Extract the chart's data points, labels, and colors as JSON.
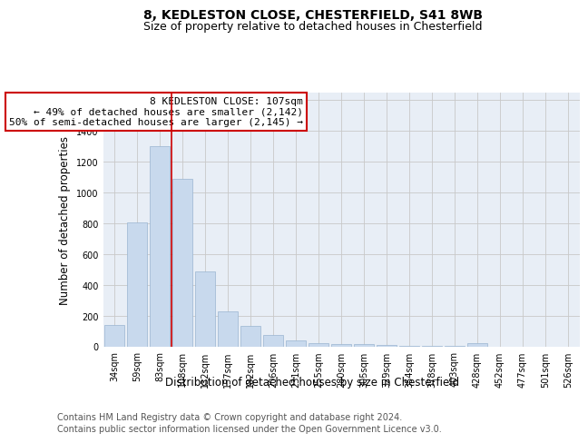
{
  "title1": "8, KEDLESTON CLOSE, CHESTERFIELD, S41 8WB",
  "title2": "Size of property relative to detached houses in Chesterfield",
  "xlabel": "Distribution of detached houses by size in Chesterfield",
  "ylabel": "Number of detached properties",
  "footnote1": "Contains HM Land Registry data © Crown copyright and database right 2024.",
  "footnote2": "Contains public sector information licensed under the Open Government Licence v3.0.",
  "categories": [
    "34sqm",
    "59sqm",
    "83sqm",
    "108sqm",
    "132sqm",
    "157sqm",
    "182sqm",
    "206sqm",
    "231sqm",
    "255sqm",
    "280sqm",
    "305sqm",
    "329sqm",
    "354sqm",
    "378sqm",
    "403sqm",
    "428sqm",
    "452sqm",
    "477sqm",
    "501sqm",
    "526sqm"
  ],
  "values": [
    140,
    810,
    1300,
    1090,
    490,
    230,
    135,
    75,
    42,
    25,
    20,
    15,
    10,
    4,
    4,
    4,
    25,
    0,
    0,
    0,
    0
  ],
  "bar_color": "#c8d9ed",
  "bar_edge_color": "#9ab5d0",
  "bar_width": 0.85,
  "red_line_x": 2.5,
  "annotation_lines": [
    "8 KEDLESTON CLOSE: 107sqm",
    "← 49% of detached houses are smaller (2,142)",
    "50% of semi-detached houses are larger (2,145) →"
  ],
  "annotation_box_color": "#ffffff",
  "annotation_box_edge_color": "#cc0000",
  "ylim": [
    0,
    1650
  ],
  "yticks": [
    0,
    200,
    400,
    600,
    800,
    1000,
    1200,
    1400,
    1600
  ],
  "grid_color": "#c8c8c8",
  "bg_color": "#e8eef6",
  "title_fontsize": 10,
  "subtitle_fontsize": 9,
  "axis_label_fontsize": 8.5,
  "tick_fontsize": 7,
  "annotation_fontsize": 8,
  "footnote_fontsize": 7
}
